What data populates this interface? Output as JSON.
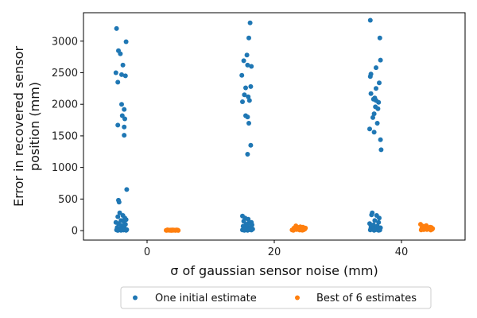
{
  "chart_data": {
    "type": "scatter",
    "title": "",
    "xlabel": "σ of gaussian sensor noise (mm)",
    "ylabel_lines": [
      "Error in recovered sensor",
      "position (mm)"
    ],
    "xlim": [
      -10,
      50
    ],
    "ylim": [
      -150,
      3450
    ],
    "xticks": [
      0,
      20,
      40
    ],
    "yticks": [
      0,
      500,
      1000,
      1500,
      2000,
      2500,
      3000
    ],
    "grid": false,
    "legend_position": "bottom-center",
    "series": [
      {
        "name": "One initial estimate",
        "color": "#1f77b4",
        "points": [
          [
            -4.8,
            3200
          ],
          [
            -4.5,
            2850
          ],
          [
            -4.2,
            2800
          ],
          [
            -3.8,
            2620
          ],
          [
            -3.3,
            2990
          ],
          [
            -4.9,
            2500
          ],
          [
            -4.0,
            2470
          ],
          [
            -3.4,
            2450
          ],
          [
            -4.6,
            2350
          ],
          [
            -4.0,
            2000
          ],
          [
            -3.6,
            1920
          ],
          [
            -3.9,
            1820
          ],
          [
            -3.5,
            1770
          ],
          [
            -4.6,
            1670
          ],
          [
            -3.6,
            1640
          ],
          [
            -3.6,
            1510
          ],
          [
            -3.2,
            650
          ],
          [
            -4.5,
            480
          ],
          [
            -4.4,
            450
          ],
          [
            -4.3,
            280
          ],
          [
            -3.8,
            240
          ],
          [
            -4.6,
            220
          ],
          [
            -3.5,
            200
          ],
          [
            -3.3,
            175
          ],
          [
            -4.1,
            160
          ],
          [
            -3.7,
            150
          ],
          [
            -4.9,
            130
          ],
          [
            -4.5,
            110
          ],
          [
            -3.4,
            100
          ],
          [
            -4.0,
            80
          ],
          [
            -3.6,
            70
          ],
          [
            -4.7,
            50
          ],
          [
            -4.2,
            40
          ],
          [
            -3.9,
            30
          ],
          [
            -3.5,
            25
          ],
          [
            -4.4,
            20
          ],
          [
            -3.2,
            15
          ],
          [
            -4.8,
            10
          ],
          [
            -3.7,
            8
          ],
          [
            -4.1,
            5
          ],
          [
            -3.3,
            3
          ],
          [
            -4.6,
            2
          ],
          [
            16.2,
            3290
          ],
          [
            16.0,
            3050
          ],
          [
            15.7,
            2780
          ],
          [
            15.2,
            2690
          ],
          [
            16.4,
            2600
          ],
          [
            15.8,
            2620
          ],
          [
            14.9,
            2460
          ],
          [
            16.3,
            2280
          ],
          [
            15.5,
            2260
          ],
          [
            15.3,
            2150
          ],
          [
            15.9,
            2120
          ],
          [
            16.1,
            2060
          ],
          [
            15.0,
            2040
          ],
          [
            15.5,
            1820
          ],
          [
            15.8,
            1800
          ],
          [
            16.0,
            1700
          ],
          [
            16.3,
            1350
          ],
          [
            15.8,
            1210
          ],
          [
            15.0,
            230
          ],
          [
            15.4,
            200
          ],
          [
            15.9,
            180
          ],
          [
            16.4,
            130
          ],
          [
            15.2,
            150
          ],
          [
            16.0,
            120
          ],
          [
            15.6,
            100
          ],
          [
            16.5,
            90
          ],
          [
            15.1,
            70
          ],
          [
            15.7,
            60
          ],
          [
            16.2,
            50
          ],
          [
            15.3,
            40
          ],
          [
            15.9,
            30
          ],
          [
            16.6,
            25
          ],
          [
            15.5,
            20
          ],
          [
            16.1,
            15
          ],
          [
            15.0,
            10
          ],
          [
            16.4,
            8
          ],
          [
            15.8,
            5
          ],
          [
            15.3,
            3
          ],
          [
            35.1,
            3330
          ],
          [
            36.6,
            3050
          ],
          [
            36.7,
            2700
          ],
          [
            36.0,
            2580
          ],
          [
            36.5,
            2340
          ],
          [
            35.2,
            2480
          ],
          [
            35.1,
            2440
          ],
          [
            36.0,
            2250
          ],
          [
            35.2,
            2170
          ],
          [
            35.8,
            2100
          ],
          [
            36.0,
            2060
          ],
          [
            35.6,
            2080
          ],
          [
            36.4,
            2030
          ],
          [
            35.9,
            1960
          ],
          [
            36.3,
            1930
          ],
          [
            35.7,
            1850
          ],
          [
            35.5,
            1790
          ],
          [
            35.0,
            1610
          ],
          [
            36.2,
            1700
          ],
          [
            35.7,
            1560
          ],
          [
            36.7,
            1440
          ],
          [
            36.8,
            1280
          ],
          [
            35.4,
            280
          ],
          [
            35.3,
            250
          ],
          [
            36.1,
            240
          ],
          [
            36.5,
            200
          ],
          [
            35.8,
            160
          ],
          [
            36.4,
            130
          ],
          [
            35.0,
            110
          ],
          [
            35.6,
            90
          ],
          [
            36.2,
            70
          ],
          [
            35.2,
            55
          ],
          [
            36.7,
            45
          ],
          [
            35.9,
            35
          ],
          [
            36.3,
            25
          ],
          [
            35.5,
            20
          ],
          [
            36.0,
            15
          ],
          [
            35.1,
            10
          ],
          [
            36.6,
            8
          ],
          [
            35.7,
            5
          ],
          [
            36.4,
            3
          ]
        ]
      },
      {
        "name": "Best of 6 estimates",
        "color": "#ff7f0e",
        "points": [
          [
            3.0,
            5
          ],
          [
            3.3,
            8
          ],
          [
            3.6,
            4
          ],
          [
            3.9,
            10
          ],
          [
            4.2,
            6
          ],
          [
            4.5,
            3
          ],
          [
            4.8,
            9
          ],
          [
            3.2,
            12
          ],
          [
            3.5,
            7
          ],
          [
            3.8,
            2
          ],
          [
            4.1,
            11
          ],
          [
            4.4,
            5
          ],
          [
            4.7,
            8
          ],
          [
            3.1,
            3
          ],
          [
            3.4,
            6
          ],
          [
            3.7,
            9
          ],
          [
            4.0,
            4
          ],
          [
            4.3,
            7
          ],
          [
            4.6,
            10
          ],
          [
            4.9,
            2
          ],
          [
            22.8,
            10
          ],
          [
            23.1,
            40
          ],
          [
            23.4,
            75
          ],
          [
            23.6,
            20
          ],
          [
            23.9,
            35
          ],
          [
            24.2,
            15
          ],
          [
            24.5,
            55
          ],
          [
            24.8,
            25
          ],
          [
            23.0,
            5
          ],
          [
            23.3,
            30
          ],
          [
            23.7,
            45
          ],
          [
            24.0,
            8
          ],
          [
            24.3,
            28
          ],
          [
            24.6,
            12
          ],
          [
            24.9,
            40
          ],
          [
            23.5,
            18
          ],
          [
            24.1,
            60
          ],
          [
            23.2,
            22
          ],
          [
            24.4,
            6
          ],
          [
            23.8,
            50
          ],
          [
            43.0,
            100
          ],
          [
            43.3,
            60
          ],
          [
            43.6,
            45
          ],
          [
            43.9,
            80
          ],
          [
            44.2,
            30
          ],
          [
            44.5,
            55
          ],
          [
            44.8,
            20
          ],
          [
            43.2,
            35
          ],
          [
            43.5,
            15
          ],
          [
            43.8,
            65
          ],
          [
            44.1,
            40
          ],
          [
            44.4,
            25
          ],
          [
            44.7,
            50
          ],
          [
            43.1,
            10
          ],
          [
            43.4,
            70
          ],
          [
            43.7,
            28
          ],
          [
            44.0,
            18
          ],
          [
            44.3,
            42
          ],
          [
            44.6,
            8
          ],
          [
            44.9,
            33
          ]
        ]
      }
    ]
  }
}
